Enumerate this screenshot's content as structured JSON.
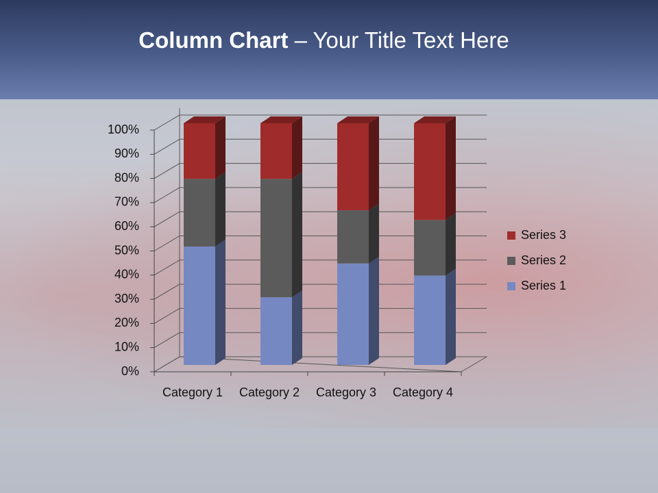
{
  "chart_data": {
    "type": "stacked-bar-3d",
    "title": {
      "bold": "Column Chart",
      "rest": "– Your Title Text Here"
    },
    "categories": [
      "Category 1",
      "Category 2",
      "Category 3",
      "Category 4"
    ],
    "series": [
      {
        "name": "Series 1",
        "color": "#7688c2",
        "values": [
          49,
          28,
          42,
          37
        ]
      },
      {
        "name": "Series 2",
        "color": "#5b5b5b",
        "values": [
          28,
          49,
          22,
          23
        ]
      },
      {
        "name": "Series 3",
        "color": "#a02b2b",
        "values": [
          23,
          23,
          36,
          40
        ]
      }
    ],
    "ylim": [
      0,
      100
    ],
    "yticks": [
      {
        "value": 0,
        "label": "0%"
      },
      {
        "value": 10,
        "label": "10%"
      },
      {
        "value": 20,
        "label": "20%"
      },
      {
        "value": 30,
        "label": "30%"
      },
      {
        "value": 40,
        "label": "40%"
      },
      {
        "value": 50,
        "label": "50%"
      },
      {
        "value": 60,
        "label": "60%"
      },
      {
        "value": 70,
        "label": "70%"
      },
      {
        "value": 80,
        "label": "80%"
      },
      {
        "value": 90,
        "label": "90%"
      },
      {
        "value": 100,
        "label": "100%"
      }
    ],
    "grid": true,
    "legend": "right"
  }
}
